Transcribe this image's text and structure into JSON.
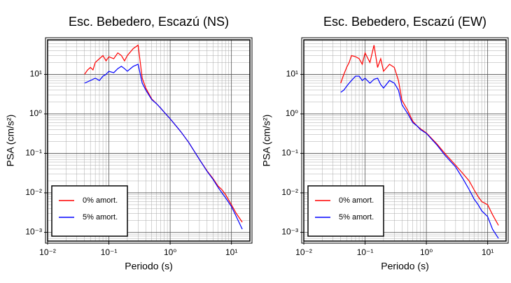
{
  "chart_data": [
    {
      "type": "line",
      "title": "Esc. Bebedero, Escazú (NS)",
      "x_label": "Periodo (s)",
      "y_label": "PSA (cm/s²)",
      "log_x": true,
      "log_y": true,
      "grid": true,
      "legend": "lower left",
      "xlim": [
        0.01,
        20
      ],
      "ylim": [
        0.0006,
        75
      ],
      "xticks": [
        {
          "value": 0.01,
          "label": "10⁻²"
        },
        {
          "value": 0.1,
          "label": "10⁻¹"
        },
        {
          "value": 1,
          "label": "10⁰"
        },
        {
          "value": 10,
          "label": "10¹"
        }
      ],
      "yticks": [
        {
          "value": 0.001,
          "label": "10⁻³"
        },
        {
          "value": 0.01,
          "label": "10⁻²"
        },
        {
          "value": 0.1,
          "label": "10⁻¹"
        },
        {
          "value": 1,
          "label": "10⁰"
        },
        {
          "value": 10,
          "label": "10¹"
        }
      ],
      "x": [
        0.04,
        0.045,
        0.05,
        0.055,
        0.06,
        0.07,
        0.08,
        0.09,
        0.1,
        0.12,
        0.14,
        0.16,
        0.18,
        0.2,
        0.25,
        0.3,
        0.35,
        0.4,
        0.5,
        0.6,
        0.7,
        0.8,
        1,
        1.5,
        2,
        3,
        4,
        5,
        6,
        7,
        8,
        10,
        12,
        15
      ],
      "series": [
        {
          "name": "0% amort.",
          "color": "#ff0000",
          "values": [
            10,
            13,
            15,
            13,
            20,
            25,
            30,
            22,
            28,
            25,
            35,
            30,
            22,
            30,
            45,
            55,
            8,
            4.5,
            2.4,
            1.8,
            1.4,
            1.1,
            0.75,
            0.35,
            0.19,
            0.07,
            0.036,
            0.023,
            0.015,
            0.012,
            0.009,
            0.005,
            0.003,
            0.0018
          ]
        },
        {
          "name": "5% amort.",
          "color": "#0000ff",
          "values": [
            6,
            6.5,
            7,
            7.5,
            8,
            7,
            9,
            10,
            12,
            11,
            14,
            16,
            14,
            12,
            16,
            18,
            6,
            4,
            2.3,
            1.8,
            1.4,
            1.1,
            0.75,
            0.35,
            0.19,
            0.07,
            0.035,
            0.022,
            0.014,
            0.01,
            0.0075,
            0.0045,
            0.0025,
            0.0012
          ]
        }
      ]
    },
    {
      "type": "line",
      "title": "Esc. Bebedero, Escazú (EW)",
      "x_label": "Periodo (s)",
      "y_label": "PSA (cm/s²)",
      "log_x": true,
      "log_y": true,
      "grid": true,
      "legend": "lower left",
      "xlim": [
        0.01,
        20
      ],
      "ylim": [
        0.0006,
        75
      ],
      "xticks": [
        {
          "value": 0.01,
          "label": "10⁻²"
        },
        {
          "value": 0.1,
          "label": "10⁻¹"
        },
        {
          "value": 1,
          "label": "10⁰"
        },
        {
          "value": 10,
          "label": "10¹"
        }
      ],
      "yticks": [
        {
          "value": 0.001,
          "label": "10⁻³"
        },
        {
          "value": 0.01,
          "label": "10⁻²"
        },
        {
          "value": 0.1,
          "label": "10⁻¹"
        },
        {
          "value": 1,
          "label": "10⁰"
        },
        {
          "value": 10,
          "label": "10¹"
        }
      ],
      "x": [
        0.04,
        0.045,
        0.05,
        0.055,
        0.06,
        0.07,
        0.08,
        0.09,
        0.1,
        0.12,
        0.14,
        0.16,
        0.18,
        0.2,
        0.25,
        0.3,
        0.35,
        0.4,
        0.5,
        0.6,
        0.7,
        0.8,
        1,
        1.5,
        2,
        3,
        4,
        5,
        6,
        7,
        8,
        10,
        12,
        15
      ],
      "series": [
        {
          "name": "0% amort.",
          "color": "#ff0000",
          "values": [
            6,
            10,
            15,
            20,
            30,
            28,
            25,
            18,
            35,
            20,
            55,
            15,
            25,
            12,
            18,
            15,
            7,
            2.2,
            1.2,
            0.65,
            0.5,
            0.42,
            0.33,
            0.17,
            0.1,
            0.05,
            0.03,
            0.02,
            0.012,
            0.008,
            0.006,
            0.005,
            0.0028,
            0.0015
          ]
        },
        {
          "name": "5% amort.",
          "color": "#0000ff",
          "values": [
            3.5,
            4,
            5,
            6,
            7,
            9,
            9,
            7,
            8,
            6,
            7.5,
            8,
            5.5,
            4.5,
            7,
            6,
            4,
            1.7,
            1,
            0.6,
            0.5,
            0.4,
            0.32,
            0.16,
            0.09,
            0.045,
            0.022,
            0.012,
            0.007,
            0.005,
            0.0035,
            0.0025,
            0.0012,
            0.0007
          ]
        }
      ]
    }
  ]
}
